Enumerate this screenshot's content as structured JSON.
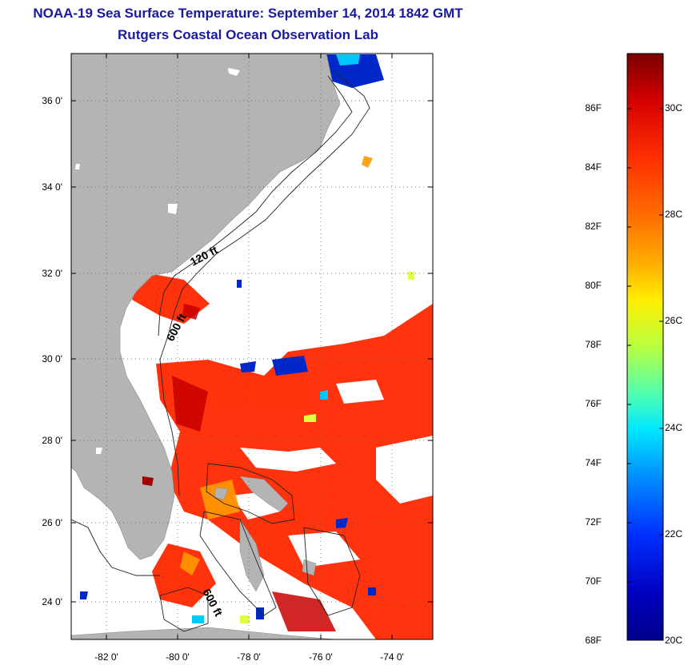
{
  "title_line1": "NOAA-19 Sea Surface Temperature:  September 14, 2014 1842 GMT",
  "title_line2": "Rutgers Coastal Ocean Observation Lab",
  "map": {
    "lat_labels": [
      "36 0'",
      "34 0'",
      "32 0'",
      "30 0'",
      "28 0'",
      "26 0'",
      "24 0'"
    ],
    "lon_labels": [
      "-82 0'",
      "-80 0'",
      "-78 0'",
      "-76 0'",
      "-74 0'"
    ],
    "isobath_labels": [
      "120 ft",
      "600 ft",
      "600 ft"
    ],
    "land_color": "#b4b4b4",
    "cloud_color": "#ffffff"
  },
  "colorbar": {
    "fahrenheit_labels": [
      "86F",
      "84F",
      "82F",
      "80F",
      "78F",
      "76F",
      "74F",
      "72F",
      "70F",
      "68F"
    ],
    "celsius_labels": [
      "30C",
      "28C",
      "26C",
      "24C",
      "22C",
      "20C"
    ],
    "colors": [
      "#7a0000",
      "#d40000",
      "#ff2a00",
      "#ff6a00",
      "#ffb000",
      "#ffee00",
      "#b8ff40",
      "#40ffc0",
      "#00c8ff",
      "#0070ff",
      "#0010c8",
      "#00008a"
    ]
  }
}
